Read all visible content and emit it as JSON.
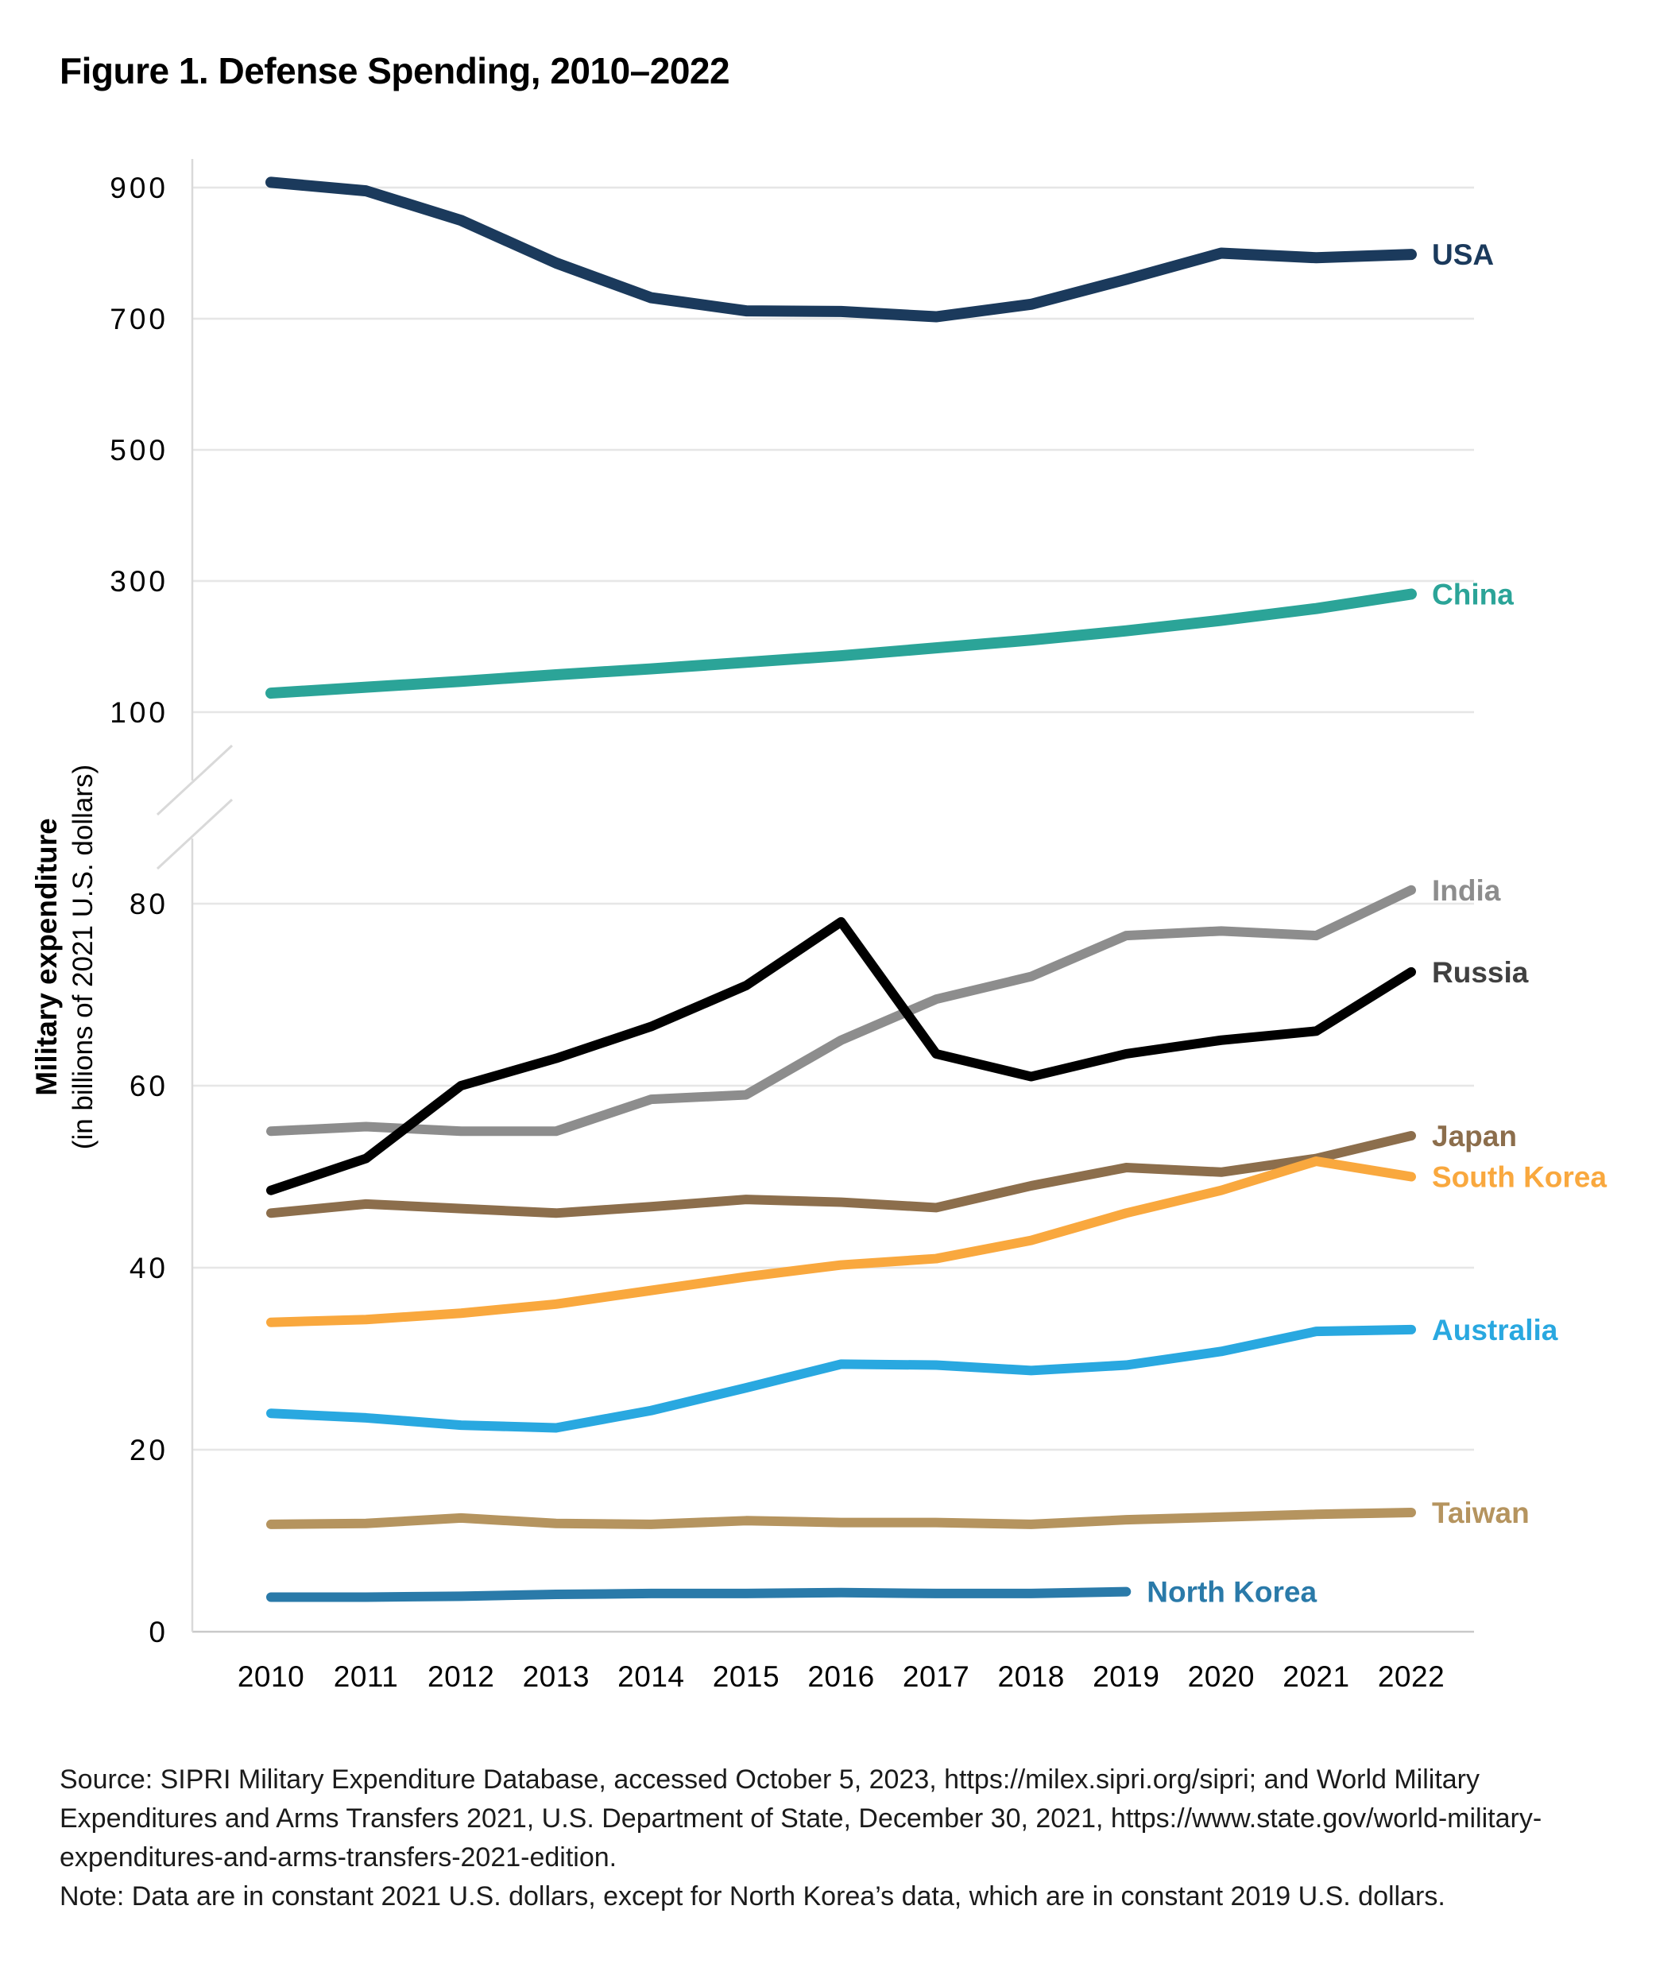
{
  "title": "Figure 1. Defense Spending, 2010–2022",
  "y_axis": {
    "title_bold": "Military expenditure",
    "title_sub": "(in billions of 2021 U.S. dollars)",
    "upper_ticks": [
      900,
      700,
      500,
      300,
      100
    ],
    "lower_ticks": [
      80,
      60,
      40,
      20,
      0
    ]
  },
  "source_lines": [
    "Source: SIPRI Military Expenditure Database, accessed October 5, 2023, https://milex.sipri.org/sipri; and World Military",
    "Expenditures and Arms Transfers 2021, U.S. Department of State, December 30, 2021, https://www.state.gov/world-military-",
    "expenditures-and-arms-transfers-2021-edition.",
    "Note: Data are in constant 2021 U.S. dollars, except for North Korea’s data, which are in constant 2019 U.S. dollars."
  ],
  "chart_data": {
    "type": "line",
    "title": "Figure 1. Defense Spending, 2010–2022",
    "xlabel": "",
    "ylabel": "Military expenditure (in billions of 2021 U.S. dollars)",
    "x": [
      2010,
      2011,
      2012,
      2013,
      2014,
      2015,
      2016,
      2017,
      2018,
      2019,
      2020,
      2021,
      2022
    ],
    "broken_y_axis": {
      "upper_range": [
        100,
        980
      ],
      "lower_range": [
        0,
        83
      ],
      "upper_tick_values": [
        900,
        700,
        500,
        300,
        100
      ],
      "lower_tick_values": [
        80,
        60,
        40,
        20,
        0
      ]
    },
    "grid": true,
    "legend_position": "right-of-line-ends",
    "series": [
      {
        "name": "USA",
        "label": "USA",
        "color": "#1b3a5c",
        "panel": "upper",
        "values": [
          908,
          895,
          850,
          785,
          732,
          712,
          711,
          703,
          722,
          760,
          800,
          793,
          798
        ]
      },
      {
        "name": "China",
        "label": "China",
        "color": "#2ba498",
        "panel": "upper",
        "values": [
          129,
          138,
          147,
          157,
          166,
          176,
          186,
          198,
          210,
          224,
          240,
          258,
          280
        ]
      },
      {
        "name": "India",
        "label": "India",
        "color": "#8d8d8d",
        "panel": "lower",
        "values": [
          55,
          55.5,
          55,
          55,
          58.5,
          59,
          65,
          69.5,
          72,
          76.5,
          77,
          76.5,
          81.5
        ]
      },
      {
        "name": "Russia",
        "label": "Russia",
        "color": "#000000",
        "label_color": "#404040",
        "panel": "lower",
        "values": [
          48.5,
          52,
          60,
          63,
          66.5,
          71,
          78,
          63.5,
          61,
          63.5,
          65,
          66,
          72.5
        ]
      },
      {
        "name": "Japan",
        "label": "Japan",
        "color": "#8c6e4c",
        "panel": "lower",
        "values": [
          46,
          47,
          46.5,
          46,
          46.7,
          47.5,
          47.2,
          46.6,
          49,
          51,
          50.5,
          52,
          54.5
        ]
      },
      {
        "name": "South Korea",
        "label": "South Korea",
        "color": "#f9a83e",
        "panel": "lower",
        "values": [
          34,
          34.3,
          35,
          36,
          37.5,
          39,
          40.3,
          41,
          43,
          46,
          48.5,
          51.7,
          50
        ]
      },
      {
        "name": "Australia",
        "label": "Australia",
        "color": "#29a8e0",
        "panel": "lower",
        "values": [
          24,
          23.5,
          22.7,
          22.4,
          24.3,
          26.8,
          29.4,
          29.3,
          28.7,
          29.3,
          30.8,
          33,
          33.2
        ]
      },
      {
        "name": "Taiwan",
        "label": "Taiwan",
        "color": "#b5945f",
        "panel": "lower",
        "values": [
          11.8,
          11.9,
          12.5,
          11.9,
          11.8,
          12.2,
          12.0,
          12.0,
          11.8,
          12.3,
          12.6,
          12.9,
          13.1
        ]
      },
      {
        "name": "North Korea",
        "label": "North Korea",
        "color": "#2a7aa9",
        "panel": "lower",
        "values": [
          3.8,
          3.8,
          3.9,
          4.1,
          4.2,
          4.2,
          4.3,
          4.2,
          4.2,
          4.4
        ]
      }
    ]
  },
  "style": {
    "gridline_color": "#e6e6e6",
    "zero_line_color": "#c9c9c9",
    "axis_line_color": "#d9d9d9",
    "tick_label_color": "#000000",
    "upper_stroke_width": 14,
    "lower_stroke_width": 12
  }
}
